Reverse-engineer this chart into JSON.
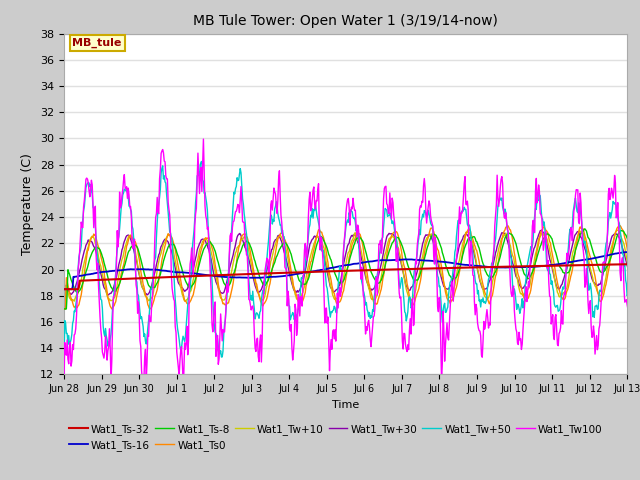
{
  "title": "MB Tule Tower: Open Water 1 (3/19/14-now)",
  "xlabel": "Time",
  "ylabel": "Temperature (C)",
  "ylim": [
    12,
    38
  ],
  "yticks": [
    12,
    14,
    16,
    18,
    20,
    22,
    24,
    26,
    28,
    30,
    32,
    34,
    36,
    38
  ],
  "fig_bg_color": "#cccccc",
  "plot_bg_color": "#ffffff",
  "grid_color": "#e0e0e0",
  "annotation_label": "MB_tule",
  "annotation_color": "#990000",
  "annotation_bg": "#ffffcc",
  "annotation_border": "#ccaa00",
  "legend_entries": [
    {
      "label": "Wat1_Ts-32",
      "color": "#cc0000"
    },
    {
      "label": "Wat1_Ts-16",
      "color": "#0000cc"
    },
    {
      "label": "Wat1_Ts-8",
      "color": "#00cc00"
    },
    {
      "label": "Wat1_Ts0",
      "color": "#ff8800"
    },
    {
      "label": "Wat1_Tw+10",
      "color": "#cccc00"
    },
    {
      "label": "Wat1_Tw+30",
      "color": "#8800aa"
    },
    {
      "label": "Wat1_Tw+50",
      "color": "#00cccc"
    },
    {
      "label": "Wat1_Tw100",
      "color": "#ff00ff"
    }
  ],
  "xtick_labels": [
    "Jun 28",
    "Jun 29",
    "Jun 30",
    "Jul 1",
    "Jul 2",
    "Jul 3",
    "Jul 4",
    "Jul 5",
    "Jul 6",
    "Jul 7",
    "Jul 8",
    "Jul 9",
    "Jul 10",
    "Jul 11",
    "Jul 12",
    "Jul 13"
  ],
  "n_days": 16,
  "n_per_day": 48
}
